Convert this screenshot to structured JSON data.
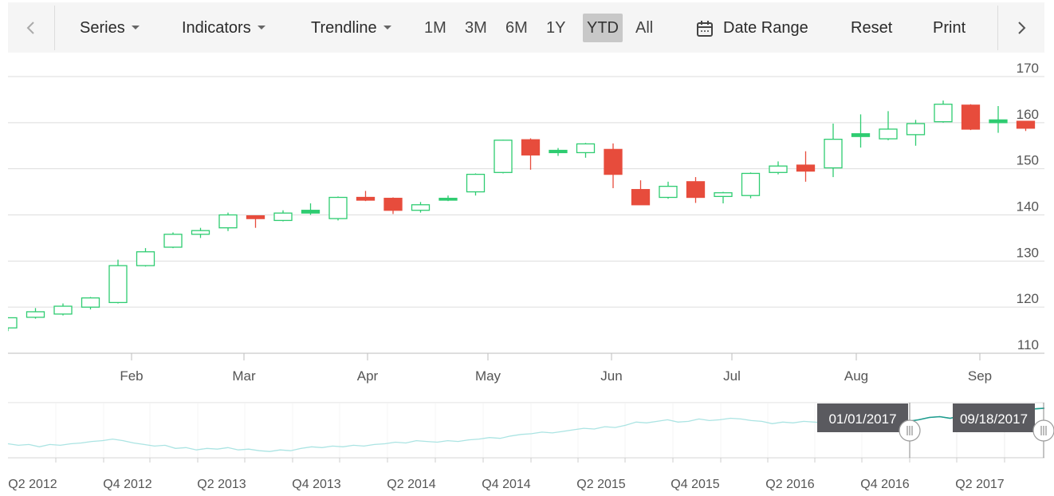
{
  "toolbar": {
    "series_label": "Series",
    "indicators_label": "Indicators",
    "trendline_label": "Trendline",
    "periods": [
      "1M",
      "3M",
      "6M",
      "1Y",
      "YTD",
      "All"
    ],
    "selected_period": "YTD",
    "date_range_label": "Date Range",
    "reset_label": "Reset",
    "print_label": "Print"
  },
  "colors": {
    "bullish": "#2ecc71",
    "bearish": "#e74c3c",
    "navigator_line": "#7fd6d4",
    "navigator_selected": "#1f9c8e",
    "tooltip_bg": "#5a5a5f",
    "grid": "#dddddd"
  },
  "chart_data": {
    "type": "candlestick",
    "yaxis": {
      "ticks": [
        110,
        120,
        130,
        140,
        150,
        160,
        170
      ],
      "range": [
        110,
        170
      ],
      "position": "right"
    },
    "xaxis": {
      "labels": [
        "Feb",
        "Mar",
        "Apr",
        "May",
        "Jun",
        "Jul",
        "Aug",
        "Sep"
      ]
    },
    "candles": [
      {
        "open": 115.5,
        "high": 117.8,
        "low": 114.8,
        "close": 117.7
      },
      {
        "open": 117.8,
        "high": 119.8,
        "low": 117.5,
        "close": 119.0
      },
      {
        "open": 118.5,
        "high": 120.8,
        "low": 118.2,
        "close": 120.2
      },
      {
        "open": 120.0,
        "high": 122.2,
        "low": 119.5,
        "close": 122.0
      },
      {
        "open": 121.0,
        "high": 130.3,
        "low": 120.8,
        "close": 129.0
      },
      {
        "open": 129.0,
        "high": 132.8,
        "low": 128.8,
        "close": 132.0
      },
      {
        "open": 133.0,
        "high": 136.2,
        "low": 132.8,
        "close": 135.8
      },
      {
        "open": 135.8,
        "high": 137.2,
        "low": 135.0,
        "close": 136.6
      },
      {
        "open": 137.2,
        "high": 140.5,
        "low": 136.5,
        "close": 140.0
      },
      {
        "open": 139.8,
        "high": 139.9,
        "low": 137.2,
        "close": 139.2
      },
      {
        "open": 138.8,
        "high": 141.0,
        "low": 138.6,
        "close": 140.4
      },
      {
        "open": 140.4,
        "high": 142.5,
        "low": 140.0,
        "close": 141.0
      },
      {
        "open": 139.2,
        "high": 144.0,
        "low": 138.8,
        "close": 143.8
      },
      {
        "open": 143.8,
        "high": 145.2,
        "low": 143.0,
        "close": 143.2
      },
      {
        "open": 143.6,
        "high": 143.8,
        "low": 140.2,
        "close": 141.0
      },
      {
        "open": 141.0,
        "high": 142.8,
        "low": 140.5,
        "close": 142.2
      },
      {
        "open": 143.2,
        "high": 144.2,
        "low": 143.0,
        "close": 143.6
      },
      {
        "open": 145.0,
        "high": 149.0,
        "low": 144.2,
        "close": 148.8
      },
      {
        "open": 149.2,
        "high": 156.3,
        "low": 149.0,
        "close": 156.2
      },
      {
        "open": 156.3,
        "high": 156.6,
        "low": 149.8,
        "close": 153.0
      },
      {
        "open": 153.5,
        "high": 154.5,
        "low": 152.8,
        "close": 154.0
      },
      {
        "open": 153.5,
        "high": 155.6,
        "low": 152.4,
        "close": 155.4
      },
      {
        "open": 154.2,
        "high": 155.5,
        "low": 145.8,
        "close": 148.8
      },
      {
        "open": 145.5,
        "high": 147.5,
        "low": 142.2,
        "close": 142.2
      },
      {
        "open": 143.8,
        "high": 147.2,
        "low": 143.5,
        "close": 146.2
      },
      {
        "open": 147.2,
        "high": 148.2,
        "low": 142.6,
        "close": 143.8
      },
      {
        "open": 144.0,
        "high": 145.0,
        "low": 142.5,
        "close": 144.8
      },
      {
        "open": 144.2,
        "high": 149.2,
        "low": 143.6,
        "close": 149.0
      },
      {
        "open": 149.2,
        "high": 151.6,
        "low": 148.8,
        "close": 150.6
      },
      {
        "open": 150.8,
        "high": 153.8,
        "low": 147.2,
        "close": 149.5
      },
      {
        "open": 150.2,
        "high": 159.8,
        "low": 148.2,
        "close": 156.4
      },
      {
        "open": 157.0,
        "high": 161.8,
        "low": 154.6,
        "close": 157.6
      },
      {
        "open": 156.5,
        "high": 162.5,
        "low": 156.2,
        "close": 158.6
      },
      {
        "open": 157.4,
        "high": 160.6,
        "low": 155.0,
        "close": 159.8
      },
      {
        "open": 160.2,
        "high": 164.8,
        "low": 160.0,
        "close": 164.0
      },
      {
        "open": 163.8,
        "high": 164.0,
        "low": 158.4,
        "close": 158.6
      },
      {
        "open": 160.0,
        "high": 163.6,
        "low": 157.8,
        "close": 160.6
      },
      {
        "open": 160.3,
        "high": 160.4,
        "low": 158.2,
        "close": 158.8
      }
    ],
    "navigator": {
      "labels": [
        "Q2 2012",
        "Q4 2012",
        "Q2 2013",
        "Q4 2013",
        "Q2 2014",
        "Q4 2014",
        "Q2 2015",
        "Q4 2015",
        "Q2 2016",
        "Q4 2016",
        "Q2 2017"
      ],
      "start_label": "01/01/2017",
      "end_label": "09/18/2017",
      "series": [
        100,
        98,
        99,
        96,
        99,
        98,
        100,
        101,
        103,
        104,
        106,
        104,
        101,
        99,
        97,
        98,
        94,
        95,
        92,
        94,
        93,
        95,
        92,
        93,
        91,
        90,
        92,
        91,
        94,
        96,
        95,
        97,
        96,
        98,
        97,
        99,
        100,
        102,
        101,
        104,
        103,
        102,
        104,
        103,
        105,
        106,
        108,
        107,
        110,
        112,
        113,
        115,
        114,
        116,
        118,
        120,
        119,
        122,
        121,
        124,
        128,
        127,
        129,
        131,
        128,
        129,
        132,
        130,
        131,
        133,
        132,
        130,
        129,
        126,
        128,
        127,
        129,
        128,
        127,
        126,
        128,
        126,
        129,
        130,
        128,
        127,
        129,
        131,
        134,
        135,
        133,
        136,
        139,
        138,
        141,
        142,
        140,
        143,
        145,
        146
      ]
    }
  }
}
